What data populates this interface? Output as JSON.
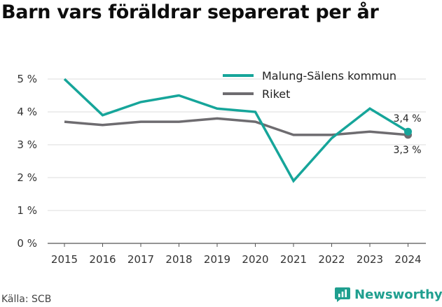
{
  "title": "Barn vars föräldrar separerat per år",
  "source": "Källa: SCB",
  "brand": {
    "name": "Newsworthy",
    "color": "#1f9f8f",
    "icon": "newsworthy-logo-icon"
  },
  "chart_data": {
    "type": "line",
    "x": [
      "2015",
      "2016",
      "2017",
      "2018",
      "2019",
      "2020",
      "2021",
      "2022",
      "2023",
      "2024"
    ],
    "ylim": [
      0,
      5
    ],
    "yticks": [
      0,
      1,
      2,
      3,
      4,
      5
    ],
    "ytick_labels": [
      "0 %",
      "1 %",
      "2 %",
      "3 %",
      "4 %",
      "5 %"
    ],
    "grid": true,
    "legend_position": "top-right",
    "series": [
      {
        "name": "Malung-Sälens kommun",
        "color": "#16a59a",
        "values": [
          5.0,
          3.9,
          4.3,
          4.5,
          4.1,
          4.0,
          1.9,
          3.2,
          4.1,
          3.4
        ],
        "end_label": "3,4 %"
      },
      {
        "name": "Riket",
        "color": "#6e6c70",
        "values": [
          3.7,
          3.6,
          3.7,
          3.7,
          3.8,
          3.7,
          3.3,
          3.3,
          3.4,
          3.3
        ],
        "end_label": "3,3 %"
      }
    ]
  }
}
